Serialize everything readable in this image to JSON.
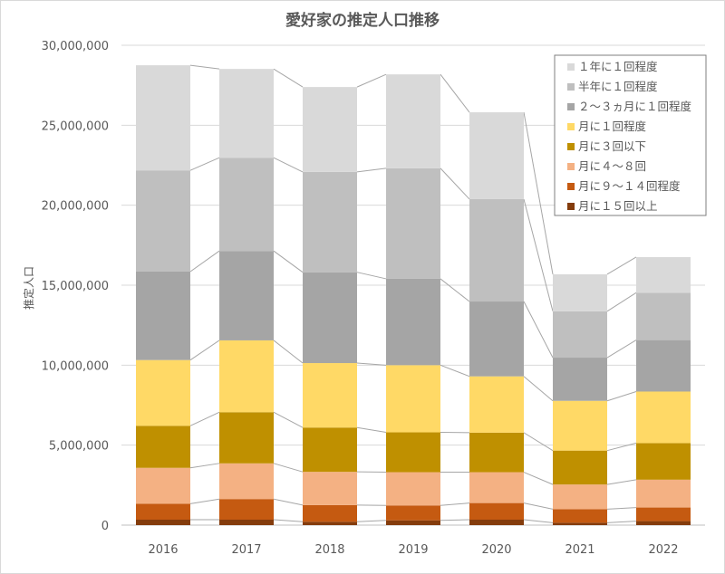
{
  "chart_data": {
    "type": "bar",
    "stacked": true,
    "title": "愛好家の推定人口推移",
    "xlabel": "",
    "ylabel": "推定人口",
    "ylim": [
      0,
      30000000
    ],
    "yticks": [
      "0",
      "5,000,000",
      "10,000,000",
      "15,000,000",
      "20,000,000",
      "25,000,000",
      "30,000,000"
    ],
    "grid": true,
    "legend_position": "top-right",
    "series_connector_lines": true,
    "categories": [
      "2016",
      "2017",
      "2018",
      "2019",
      "2020",
      "2021",
      "2022"
    ],
    "series": [
      {
        "name": "月に１５回以上",
        "color": "#843c0c",
        "values": [
          340000,
          340000,
          210000,
          300000,
          340000,
          150000,
          250000
        ]
      },
      {
        "name": "月に９～１４回程度",
        "color": "#c55a11",
        "values": [
          1000000,
          1290000,
          1040000,
          930000,
          1040000,
          850000,
          850000
        ]
      },
      {
        "name": "月に４～８回",
        "color": "#f4b183",
        "values": [
          2240000,
          2230000,
          2080000,
          2080000,
          1930000,
          1540000,
          1740000
        ]
      },
      {
        "name": "月に３回以下",
        "color": "#bf9000",
        "values": [
          2630000,
          3200000,
          2770000,
          2490000,
          2470000,
          2120000,
          2290000
        ]
      },
      {
        "name": "月に１回程度",
        "color": "#ffd966",
        "values": [
          4110000,
          4490000,
          4030000,
          4200000,
          3520000,
          3110000,
          3220000
        ]
      },
      {
        "name": "２～３ヵ月に１回程度",
        "color": "#a5a5a5",
        "values": [
          5530000,
          5590000,
          5680000,
          5400000,
          4680000,
          2700000,
          3220000
        ]
      },
      {
        "name": "半年に１回程度",
        "color": "#bfbfbf",
        "values": [
          6330000,
          5830000,
          6270000,
          6910000,
          6400000,
          2900000,
          2960000
        ]
      },
      {
        "name": "１年に１回程度",
        "color": "#d9d9d9",
        "values": [
          6570000,
          5550000,
          5310000,
          5870000,
          5430000,
          2310000,
          2230000
        ]
      }
    ]
  }
}
